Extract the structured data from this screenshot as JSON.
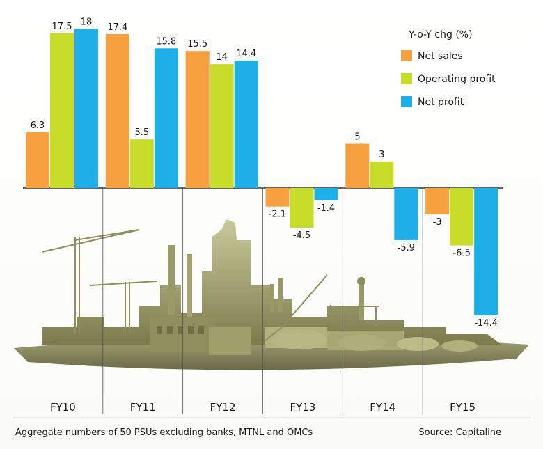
{
  "chart_data": {
    "type": "bar",
    "categories": [
      "FY10",
      "FY11",
      "FY12",
      "FY13",
      "FY14",
      "FY15"
    ],
    "series": [
      {
        "name": "Net sales",
        "color": "#f7a03f",
        "values": [
          6.3,
          17.4,
          15.5,
          -2.1,
          5,
          -3
        ]
      },
      {
        "name": "Operating profit",
        "color": "#c8dc2a",
        "values": [
          17.5,
          5.5,
          14,
          -4.5,
          3,
          -6.5
        ]
      },
      {
        "name": "Net profit",
        "color": "#1eaee8",
        "values": [
          18,
          15.8,
          14.4,
          -1.4,
          -5.9,
          -14.4
        ]
      }
    ],
    "value_labels": [
      [
        "6.3",
        "17.4",
        "15.5",
        "-2.1",
        "5",
        "-3"
      ],
      [
        "17.5",
        "5.5",
        "14",
        "-4.5",
        "3",
        "-6.5"
      ],
      [
        "18",
        "15.8",
        "14.4",
        "-1.4",
        "-5.9",
        "-14.4"
      ]
    ],
    "legend": {
      "title": "Y-o-Y chg (%)",
      "placement": "top-right"
    },
    "grid": false,
    "ylim": [
      -16,
      20
    ]
  },
  "footer": {
    "note": "Aggregate numbers of 50 PSUs excluding banks, MTNL and OMCs",
    "source": "Source: Capitaline"
  }
}
